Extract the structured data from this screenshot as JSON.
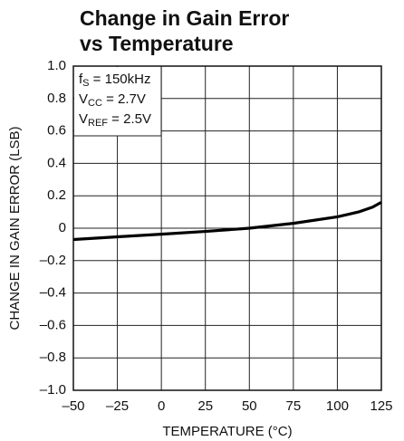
{
  "chart_data": {
    "type": "line",
    "title": "Change in Gain Error vs Temperature",
    "x_label": "TEMPERATURE (°C)",
    "y_label": "CHANGE IN GAIN ERROR (LSB)",
    "annotations": [
      {
        "main": "f",
        "sub": "S",
        "rest": " = 150kHz"
      },
      {
        "main": "V",
        "sub": "CC",
        "rest": " = 2.7V"
      },
      {
        "main": "V",
        "sub": "REF",
        "rest": " = 2.5V"
      }
    ],
    "x": [
      -50,
      -25,
      0,
      25,
      50,
      75,
      100,
      112,
      120,
      125
    ],
    "series": [
      {
        "color": "#000000",
        "values": [
          -0.07,
          -0.053,
          -0.037,
          -0.02,
          0.0,
          0.03,
          0.07,
          0.1,
          0.13,
          0.16
        ]
      }
    ],
    "xlim": [
      -50,
      125
    ],
    "xticks": [
      {
        "value": -50,
        "label": "–50"
      },
      {
        "value": -25,
        "label": "–25"
      },
      0,
      25,
      50,
      75,
      100,
      125
    ],
    "ylim": [
      -1,
      1
    ],
    "yticks": [
      {
        "value": -1,
        "label": "–1.0"
      },
      {
        "value": -0.8,
        "label": "–0.8"
      },
      {
        "value": -0.6,
        "label": "–0.6"
      },
      {
        "value": -0.4,
        "label": "–0.4"
      },
      {
        "value": -0.2,
        "label": "–0.2"
      },
      0,
      0.2,
      0.4,
      0.6,
      0.8,
      {
        "value": 1,
        "label": "1.0"
      }
    ],
    "grid": true
  }
}
